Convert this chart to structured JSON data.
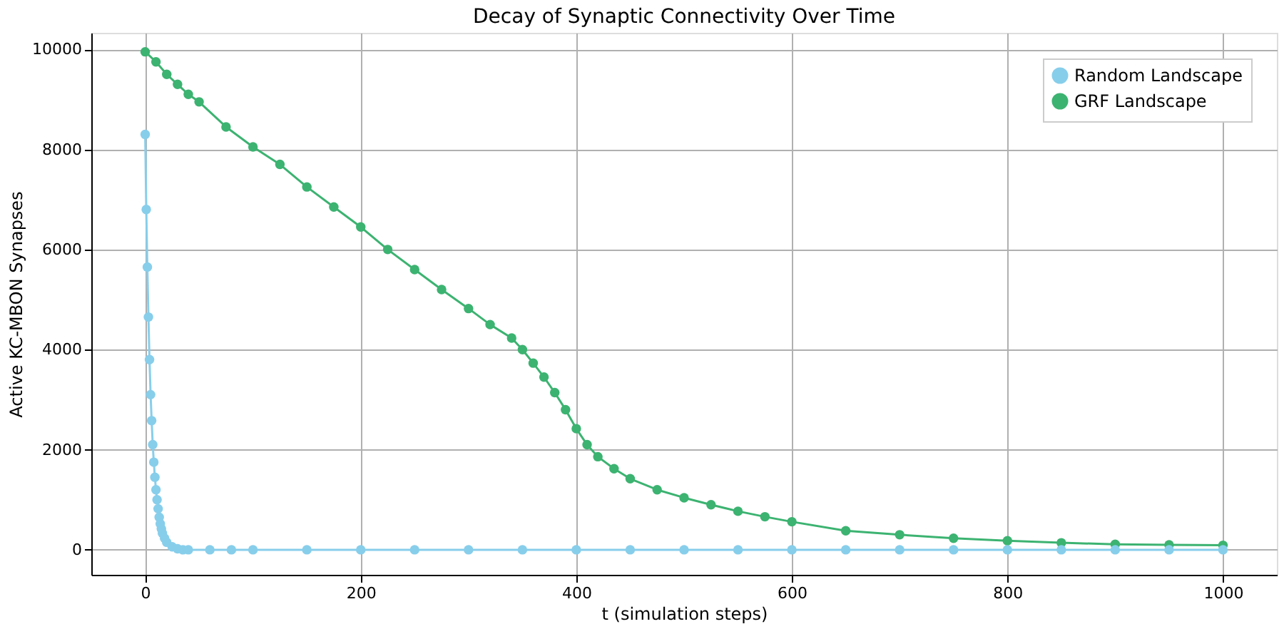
{
  "chart_data": {
    "type": "line",
    "title": "Decay of Synaptic Connectivity Over Time",
    "xlabel": "t (simulation steps)",
    "ylabel": "Active KC-MBON Synapses",
    "xlim": [
      -50,
      1050
    ],
    "ylim": [
      -500,
      10330
    ],
    "xticks": [
      0,
      200,
      400,
      600,
      800,
      1000
    ],
    "yticks": [
      0,
      2000,
      4000,
      6000,
      8000,
      10000
    ],
    "grid": true,
    "legend": "top right",
    "marker": "circle",
    "line_style": "solid",
    "series": [
      {
        "name": "Random Landscape",
        "color": "#87ceeb",
        "x": [
          0,
          1,
          2,
          3,
          4,
          5,
          6,
          7,
          8,
          9,
          10,
          11,
          12,
          13,
          14,
          15,
          16,
          18,
          20,
          25,
          30,
          35,
          40,
          60,
          80,
          100,
          150,
          200,
          250,
          300,
          350,
          400,
          450,
          500,
          550,
          600,
          650,
          700,
          750,
          800,
          850,
          900,
          950,
          1000
        ],
        "values": [
          8300,
          6800,
          5650,
          4650,
          3800,
          3100,
          2580,
          2100,
          1750,
          1450,
          1200,
          1000,
          820,
          650,
          520,
          420,
          330,
          230,
          150,
          60,
          20,
          0,
          0,
          0,
          0,
          0,
          0,
          0,
          0,
          0,
          0,
          0,
          0,
          0,
          0,
          0,
          0,
          0,
          0,
          0,
          0,
          0,
          0,
          0
        ]
      },
      {
        "name": "GRF Landscape",
        "color": "#3cb371",
        "x": [
          0,
          10,
          20,
          30,
          40,
          50,
          75,
          100,
          125,
          150,
          175,
          200,
          225,
          250,
          275,
          300,
          320,
          340,
          350,
          360,
          370,
          380,
          390,
          400,
          410,
          420,
          435,
          450,
          475,
          500,
          525,
          550,
          575,
          600,
          650,
          700,
          750,
          800,
          850,
          900,
          950,
          1000
        ],
        "values": [
          9950,
          9750,
          9500,
          9300,
          9100,
          8950,
          8450,
          8050,
          7700,
          7250,
          6850,
          6450,
          6000,
          5600,
          5200,
          4820,
          4500,
          4230,
          4000,
          3730,
          3450,
          3140,
          2800,
          2420,
          2100,
          1860,
          1620,
          1420,
          1200,
          1040,
          900,
          770,
          660,
          560,
          380,
          300,
          230,
          180,
          140,
          110,
          100,
          90
        ]
      }
    ]
  }
}
